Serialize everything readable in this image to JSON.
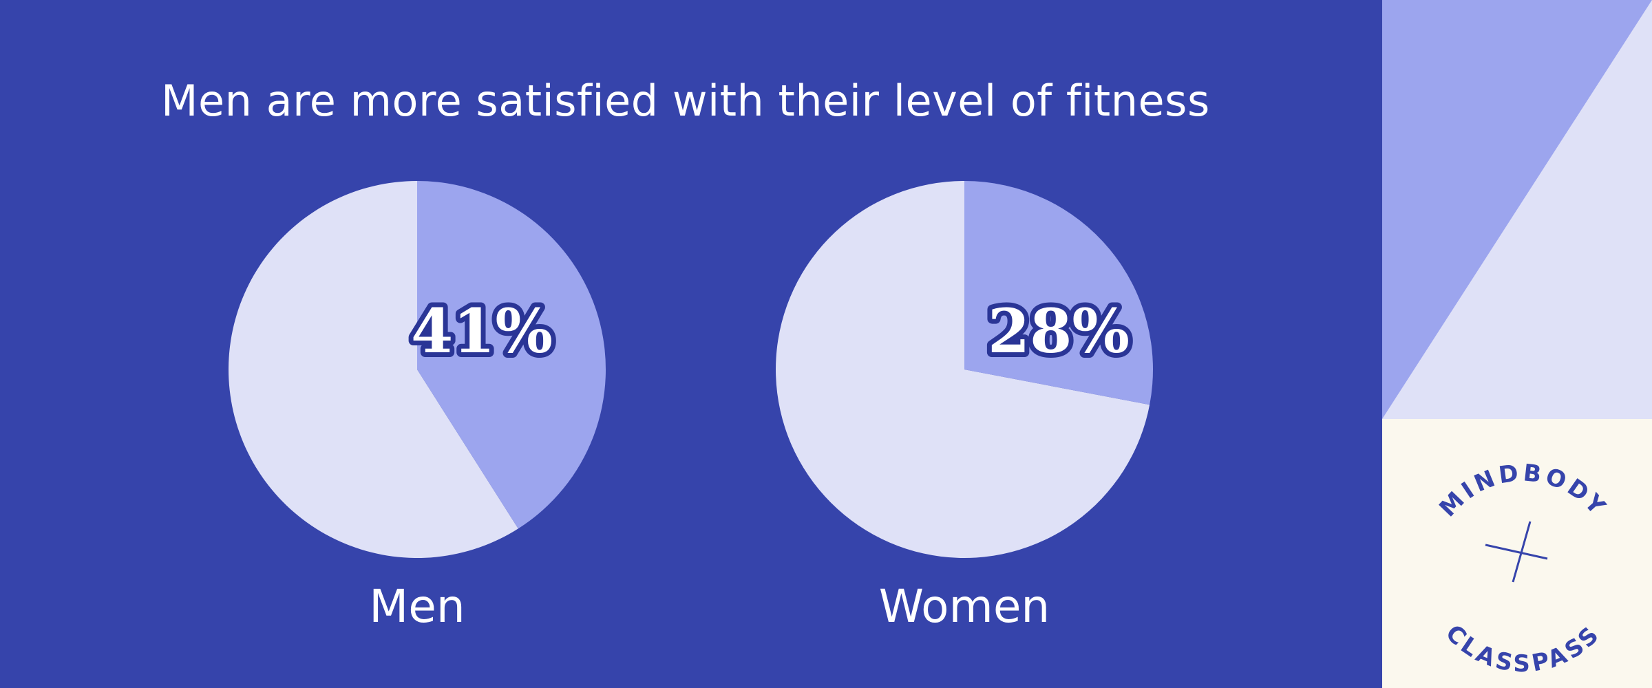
{
  "colors": {
    "background": "#3644ab",
    "slice_highlight": "#9ca5ee",
    "slice_rest": "#dfe1f7",
    "text_outline": "#2a3596",
    "panel_cream": "#fbf8ee",
    "panel_light": "#dfe1f7",
    "panel_mid": "#9ca5ee",
    "logo_ink": "#3644ab"
  },
  "chart_data": [
    {
      "type": "pie",
      "title": "Men are more satisfied with their level of fitness",
      "category": "Men",
      "value_label": "41%",
      "values": [
        41,
        59
      ]
    },
    {
      "type": "pie",
      "title": "Men are more satisfied with their level of fitness",
      "category": "Women",
      "value_label": "28%",
      "values": [
        28,
        72
      ]
    }
  ],
  "logo": {
    "top_text": "MINDBODY",
    "bottom_text": "CLASSPASS"
  }
}
